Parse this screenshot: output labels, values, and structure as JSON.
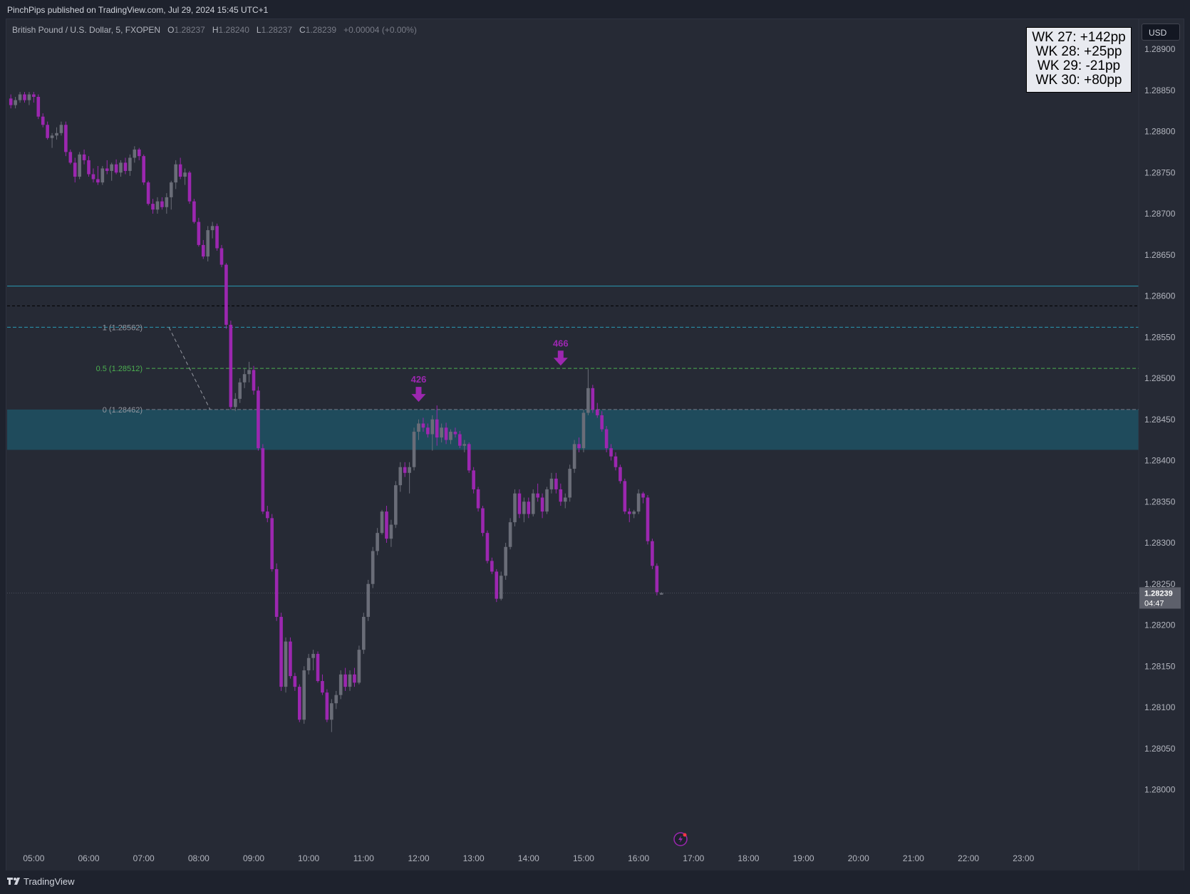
{
  "header": {
    "publisher": "PinchPips published on TradingView.com, Jul 29, 2024 15:45 UTC+1"
  },
  "legend": {
    "symbol": "British Pound / U.S. Dollar, 5, FXOPEN",
    "o_label": "O",
    "o": "1.28237",
    "h_label": "H",
    "h": "1.28240",
    "l_label": "L",
    "l": "1.28237",
    "c_label": "C",
    "c": "1.28239",
    "change": "+0.00004 (+0.00%)"
  },
  "currency_button": "USD",
  "weekly_box": [
    "WK 27: +142pp",
    "WK 28: +25pp",
    "WK 29: -21pp",
    "WK 30: +80pp"
  ],
  "footer": {
    "brand": "TradingView",
    "logo_icon": "tradingview-logo-icon"
  },
  "colors": {
    "bear": "#9c27b0",
    "bull": "#6a6d78",
    "zone": "#1f4f61",
    "cyan_line": "#2a9bb5",
    "green_line": "#4caf50",
    "bg": "#262a35"
  },
  "chart_data": {
    "type": "candlestick",
    "symbol": "GBPUSD",
    "timeframe": "5",
    "ylim": [
      1.2797,
      1.2892
    ],
    "price_ticks": [
      "1.28900",
      "1.28850",
      "1.28800",
      "1.28750",
      "1.28700",
      "1.28650",
      "1.28600",
      "1.28550",
      "1.28500",
      "1.28450",
      "1.28400",
      "1.28350",
      "1.28300",
      "1.28250",
      "1.28200",
      "1.28150",
      "1.28100",
      "1.28050",
      "1.28000"
    ],
    "time_ticks": [
      "05:00",
      "06:00",
      "07:00",
      "08:00",
      "09:00",
      "10:00",
      "11:00",
      "12:00",
      "13:00",
      "14:00",
      "15:00",
      "16:00",
      "17:00",
      "18:00",
      "19:00",
      "20:00",
      "21:00",
      "22:00",
      "23:00"
    ],
    "last_price": {
      "value": "1.28239",
      "countdown": "04:47"
    },
    "levels": [
      {
        "name": "upper-cyan",
        "price": 1.28612,
        "style": "solid"
      },
      {
        "name": "black-dashed",
        "price": 1.28588,
        "style": "dashed"
      },
      {
        "name": "fib-1",
        "price": 1.28562,
        "label": "1 (1.28562)"
      },
      {
        "name": "fib-0.5",
        "price": 1.28512,
        "label": "0.5 (1.28512)"
      },
      {
        "name": "fib-0",
        "price": 1.28462,
        "label": "0 (1.28462)"
      }
    ],
    "zone": {
      "top": 1.28462,
      "bottom": 1.28413
    },
    "markers": [
      {
        "label": "426",
        "time": "12:00",
        "price": 1.28467
      },
      {
        "label": "466",
        "time": "14:35",
        "price": 1.28511
      }
    ],
    "candles": [
      [
        1.2884,
        1.28845,
        1.28828,
        1.28832
      ],
      [
        1.28832,
        1.28842,
        1.28828,
        1.28838
      ],
      [
        1.28838,
        1.28848,
        1.28835,
        1.28845
      ],
      [
        1.28845,
        1.28848,
        1.28835,
        1.28838
      ],
      [
        1.28838,
        1.28848,
        1.28832,
        1.28845
      ],
      [
        1.28845,
        1.28848,
        1.28835,
        1.28842
      ],
      [
        1.28842,
        1.28845,
        1.28815,
        1.28818
      ],
      [
        1.28818,
        1.28822,
        1.28805,
        1.28808
      ],
      [
        1.28808,
        1.28812,
        1.2879,
        1.28792
      ],
      [
        1.28792,
        1.28798,
        1.2878,
        1.28795
      ],
      [
        1.28795,
        1.28805,
        1.2879,
        1.28798
      ],
      [
        1.28798,
        1.28812,
        1.28795,
        1.28808
      ],
      [
        1.28808,
        1.28812,
        1.2877,
        1.28775
      ],
      [
        1.28775,
        1.28778,
        1.2876,
        1.28762
      ],
      [
        1.28762,
        1.28768,
        1.28738,
        1.28745
      ],
      [
        1.28745,
        1.28775,
        1.28742,
        1.28772
      ],
      [
        1.28772,
        1.28778,
        1.2876,
        1.28765
      ],
      [
        1.28765,
        1.2877,
        1.28745,
        1.28748
      ],
      [
        1.28748,
        1.28755,
        1.28738,
        1.28742
      ],
      [
        1.28742,
        1.28758,
        1.28735,
        1.28738
      ],
      [
        1.28738,
        1.28758,
        1.28735,
        1.28755
      ],
      [
        1.28755,
        1.28765,
        1.28748,
        1.28752
      ],
      [
        1.28752,
        1.28762,
        1.2874,
        1.2876
      ],
      [
        1.2876,
        1.28766,
        1.28748,
        1.2875
      ],
      [
        1.2875,
        1.28765,
        1.28745,
        1.28762
      ],
      [
        1.28762,
        1.28768,
        1.28748,
        1.28752
      ],
      [
        1.28752,
        1.28772,
        1.28746,
        1.28768
      ],
      [
        1.28768,
        1.28782,
        1.28762,
        1.28778
      ],
      [
        1.28778,
        1.2878,
        1.28765,
        1.2877
      ],
      [
        1.2877,
        1.28772,
        1.28735,
        1.28738
      ],
      [
        1.28738,
        1.2874,
        1.2871,
        1.28712
      ],
      [
        1.28712,
        1.28718,
        1.287,
        1.28705
      ],
      [
        1.28705,
        1.2872,
        1.287,
        1.28715
      ],
      [
        1.28715,
        1.2872,
        1.28705,
        1.28708
      ],
      [
        1.28708,
        1.28725,
        1.287,
        1.2872
      ],
      [
        1.2872,
        1.2874,
        1.28705,
        1.28738
      ],
      [
        1.28738,
        1.28765,
        1.2873,
        1.2876
      ],
      [
        1.2876,
        1.28768,
        1.28742,
        1.28745
      ],
      [
        1.28745,
        1.28755,
        1.28735,
        1.2875
      ],
      [
        1.2875,
        1.28752,
        1.28712,
        1.28715
      ],
      [
        1.28715,
        1.28718,
        1.28688,
        1.2869
      ],
      [
        1.2869,
        1.28695,
        1.2866,
        1.28662
      ],
      [
        1.28662,
        1.28668,
        1.28645,
        1.28648
      ],
      [
        1.28648,
        1.28685,
        1.28642,
        1.2868
      ],
      [
        1.2868,
        1.2869,
        1.2867,
        1.28685
      ],
      [
        1.28685,
        1.28688,
        1.28655,
        1.28658
      ],
      [
        1.28658,
        1.28662,
        1.28635,
        1.28638
      ],
      [
        1.28638,
        1.2864,
        1.2856,
        1.28565
      ],
      [
        1.28565,
        1.2857,
        1.28462,
        1.28465
      ],
      [
        1.28465,
        1.28482,
        1.2846,
        1.28475
      ],
      [
        1.28475,
        1.285,
        1.2847,
        1.28495
      ],
      [
        1.28495,
        1.28512,
        1.28488,
        1.28505
      ],
      [
        1.28505,
        1.2852,
        1.28495,
        1.2851
      ],
      [
        1.2851,
        1.28515,
        1.2848,
        1.28485
      ],
      [
        1.28485,
        1.2849,
        1.28412,
        1.28415
      ],
      [
        1.28415,
        1.2842,
        1.28335,
        1.28338
      ],
      [
        1.28338,
        1.28345,
        1.28325,
        1.2833
      ],
      [
        1.2833,
        1.28335,
        1.28265,
        1.28268
      ],
      [
        1.28268,
        1.28275,
        1.28205,
        1.2821
      ],
      [
        1.2821,
        1.28215,
        1.2812,
        1.28125
      ],
      [
        1.28125,
        1.28185,
        1.28118,
        1.2818
      ],
      [
        1.2818,
        1.28185,
        1.28135,
        1.28138
      ],
      [
        1.28138,
        1.28142,
        1.2812,
        1.28125
      ],
      [
        1.28125,
        1.28128,
        1.28082,
        1.28085
      ],
      [
        1.28085,
        1.2815,
        1.2808,
        1.28145
      ],
      [
        1.28145,
        1.28165,
        1.2814,
        1.2816
      ],
      [
        1.2816,
        1.2817,
        1.28145,
        1.28165
      ],
      [
        1.28165,
        1.28168,
        1.2813,
        1.28132
      ],
      [
        1.28132,
        1.2814,
        1.28115,
        1.28118
      ],
      [
        1.28118,
        1.28122,
        1.28082,
        1.28085
      ],
      [
        1.28085,
        1.2811,
        1.2807,
        1.28105
      ],
      [
        1.28105,
        1.2812,
        1.28098,
        1.28115
      ],
      [
        1.28115,
        1.28145,
        1.2811,
        1.2814
      ],
      [
        1.2814,
        1.28148,
        1.2812,
        1.28125
      ],
      [
        1.28125,
        1.28145,
        1.2812,
        1.2814
      ],
      [
        1.2814,
        1.28148,
        1.28125,
        1.2813
      ],
      [
        1.2813,
        1.28175,
        1.28128,
        1.2817
      ],
      [
        1.2817,
        1.28215,
        1.28165,
        1.2821
      ],
      [
        1.2821,
        1.28255,
        1.28205,
        1.2825
      ],
      [
        1.2825,
        1.28295,
        1.28245,
        1.2829
      ],
      [
        1.2829,
        1.28318,
        1.28285,
        1.28312
      ],
      [
        1.28312,
        1.2834,
        1.2831,
        1.28338
      ],
      [
        1.28338,
        1.28345,
        1.283,
        1.28305
      ],
      [
        1.28305,
        1.28328,
        1.28295,
        1.28322
      ],
      [
        1.28322,
        1.28375,
        1.28318,
        1.2837
      ],
      [
        1.2837,
        1.28398,
        1.28362,
        1.28392
      ],
      [
        1.28392,
        1.28398,
        1.2838,
        1.28385
      ],
      [
        1.28385,
        1.28398,
        1.2836,
        1.28392
      ],
      [
        1.28392,
        1.2844,
        1.28388,
        1.28435
      ],
      [
        1.28435,
        1.2845,
        1.28425,
        1.28445
      ],
      [
        1.28445,
        1.28452,
        1.28435,
        1.2844
      ],
      [
        1.2844,
        1.28445,
        1.28428,
        1.28432
      ],
      [
        1.28432,
        1.28455,
        1.28412,
        1.2845
      ],
      [
        1.2845,
        1.28467,
        1.28418,
        1.28428
      ],
      [
        1.28428,
        1.28445,
        1.28422,
        1.2844
      ],
      [
        1.2844,
        1.28446,
        1.2842,
        1.28425
      ],
      [
        1.28425,
        1.28438,
        1.2842,
        1.28435
      ],
      [
        1.28435,
        1.2844,
        1.28428,
        1.28432
      ],
      [
        1.28432,
        1.28436,
        1.28415,
        1.28418
      ],
      [
        1.28418,
        1.28425,
        1.2841,
        1.2842
      ],
      [
        1.2842,
        1.28422,
        1.28385,
        1.28388
      ],
      [
        1.28388,
        1.28392,
        1.2836,
        1.28365
      ],
      [
        1.28365,
        1.28368,
        1.28338,
        1.28342
      ],
      [
        1.28342,
        1.28345,
        1.28308,
        1.28312
      ],
      [
        1.28312,
        1.28315,
        1.28275,
        1.28278
      ],
      [
        1.28278,
        1.28282,
        1.28262,
        1.28265
      ],
      [
        1.28265,
        1.28268,
        1.28228,
        1.28232
      ],
      [
        1.28232,
        1.28265,
        1.2823,
        1.2826
      ],
      [
        1.2826,
        1.283,
        1.28255,
        1.28295
      ],
      [
        1.28295,
        1.2833,
        1.28292,
        1.28325
      ],
      [
        1.28325,
        1.28365,
        1.2832,
        1.2836
      ],
      [
        1.2836,
        1.28365,
        1.2833,
        1.28335
      ],
      [
        1.28335,
        1.28355,
        1.28325,
        1.2835
      ],
      [
        1.2835,
        1.28355,
        1.2833,
        1.28335
      ],
      [
        1.28335,
        1.28365,
        1.28332,
        1.2836
      ],
      [
        1.2836,
        1.28372,
        1.2835,
        1.28355
      ],
      [
        1.28355,
        1.2836,
        1.2833,
        1.28338
      ],
      [
        1.28338,
        1.28368,
        1.28335,
        1.28365
      ],
      [
        1.28365,
        1.28385,
        1.2836,
        1.28378
      ],
      [
        1.28378,
        1.28385,
        1.2836,
        1.28365
      ],
      [
        1.28365,
        1.28372,
        1.28345,
        1.2835
      ],
      [
        1.2835,
        1.2836,
        1.28342,
        1.28355
      ],
      [
        1.28355,
        1.28395,
        1.2835,
        1.2839
      ],
      [
        1.2839,
        1.28425,
        1.28385,
        1.2842
      ],
      [
        1.2842,
        1.28428,
        1.2841,
        1.28415
      ],
      [
        1.28415,
        1.28462,
        1.2841,
        1.28458
      ],
      [
        1.28458,
        1.28511,
        1.28455,
        1.28488
      ],
      [
        1.28488,
        1.28492,
        1.28458,
        1.28462
      ],
      [
        1.28462,
        1.2847,
        1.28452,
        1.28455
      ],
      [
        1.28455,
        1.2846,
        1.28435,
        1.28438
      ],
      [
        1.28438,
        1.28442,
        1.2841,
        1.28415
      ],
      [
        1.28415,
        1.2842,
        1.284,
        1.28405
      ],
      [
        1.28405,
        1.2841,
        1.28388,
        1.28392
      ],
      [
        1.28392,
        1.28395,
        1.28372,
        1.28375
      ],
      [
        1.28375,
        1.28378,
        1.28335,
        1.28338
      ],
      [
        1.28338,
        1.28342,
        1.28325,
        1.28335
      ],
      [
        1.28335,
        1.2834,
        1.2833,
        1.28338
      ],
      [
        1.28338,
        1.28365,
        1.28335,
        1.2836
      ],
      [
        1.2836,
        1.28362,
        1.28348,
        1.28355
      ],
      [
        1.28355,
        1.28358,
        1.28298,
        1.28302
      ],
      [
        1.28302,
        1.28305,
        1.28268,
        1.28272
      ],
      [
        1.28272,
        1.28275,
        1.28236,
        1.2824
      ],
      [
        1.28237,
        1.2824,
        1.28237,
        1.28239
      ]
    ]
  }
}
